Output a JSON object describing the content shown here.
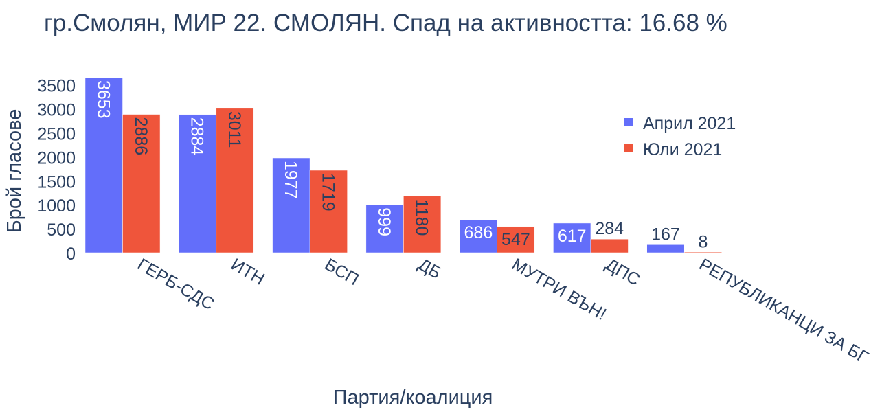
{
  "chart_data": {
    "type": "bar",
    "title": "гр.Смолян, МИР 22. СМОЛЯН. Спад на активността: 16.68 %",
    "xlabel": "Партия/коалиция",
    "ylabel": "Брой гласове",
    "categories": [
      "ГЕРБ-СДС",
      "ИТН",
      "БСП",
      "ДБ",
      "МУТРИ ВЪН!",
      "ДПС",
      "РЕПУБЛИКАНЦИ ЗА БГ"
    ],
    "series": [
      {
        "name": "Април 2021",
        "color": "#636efa",
        "values": [
          3653,
          2884,
          1977,
          999,
          686,
          617,
          167
        ]
      },
      {
        "name": "Юли 2021",
        "color": "#ef553b",
        "values": [
          2886,
          3011,
          1719,
          1180,
          547,
          284,
          8
        ]
      }
    ],
    "ylim": [
      0,
      3653
    ],
    "yticks": [
      0,
      500,
      1000,
      1500,
      2000,
      2500,
      3000,
      3500
    ],
    "grid": false,
    "legend_position": "right",
    "text_colors": {
      "dark": "#2a3f5f",
      "light": "#ffffff"
    }
  }
}
